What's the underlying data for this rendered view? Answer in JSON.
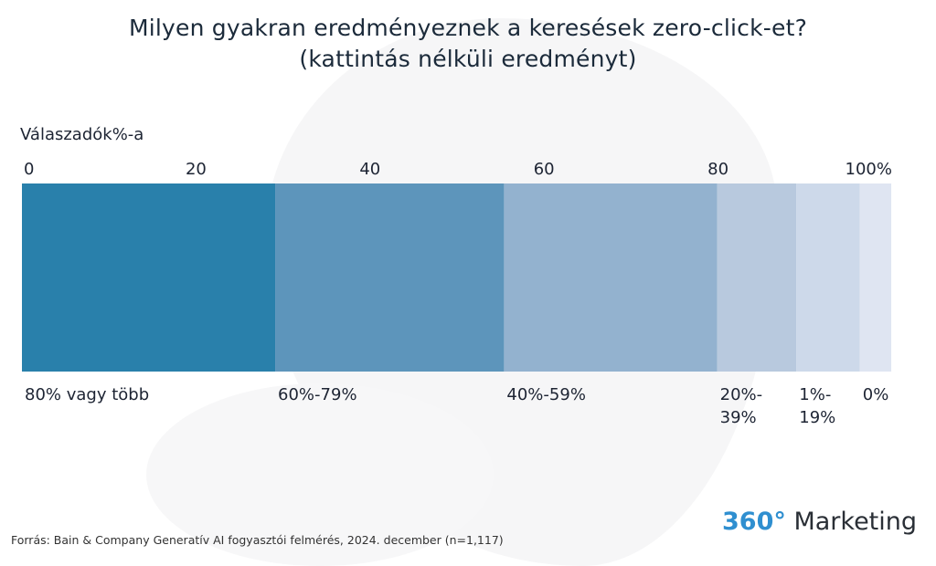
{
  "title_lines": [
    "Milyen gyakran eredményeznek a keresések zero-click-et?",
    "(kattintás nélküli eredményt)"
  ],
  "source": "Forrás: Bain & Company Generatív AI fogyasztói felmérés, 2024. december (n=1,117)",
  "logo": {
    "number": "360°",
    "word": " Marketing"
  },
  "chart_data": {
    "type": "bar",
    "orientation": "horizontal-stacked-100",
    "ylabel": "Válaszadók%-a",
    "xlim": [
      0,
      100
    ],
    "ticks": [
      {
        "label": "0",
        "value": 0
      },
      {
        "label": "20",
        "value": 20
      },
      {
        "label": "40",
        "value": 40
      },
      {
        "label": "60",
        "value": 60
      },
      {
        "label": "80",
        "value": 80
      },
      {
        "label": "100%",
        "value": 100
      }
    ],
    "segments": [
      {
        "label_lines": [
          "80% vagy több"
        ],
        "value": 29.1,
        "color": "#2980ab"
      },
      {
        "label_lines": [
          "60%-79%"
        ],
        "value": 26.3,
        "color": "#5d95bb"
      },
      {
        "label_lines": [
          "40%-59%"
        ],
        "value": 24.5,
        "color": "#93b2cf"
      },
      {
        "label_lines": [
          "20%-",
          "39%"
        ],
        "value": 9.1,
        "color": "#b8c9de"
      },
      {
        "label_lines": [
          "1%-",
          "19%"
        ],
        "value": 7.3,
        "color": "#cdd9ea"
      },
      {
        "label_lines": [
          "0%"
        ],
        "value": 3.6,
        "color": "#dfe5f2"
      }
    ]
  }
}
